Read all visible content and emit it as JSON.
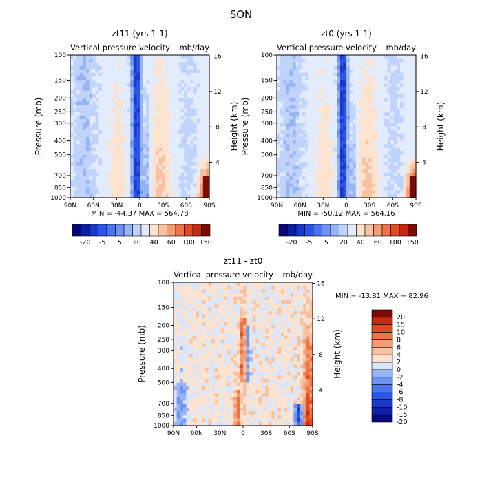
{
  "figure_title": "SON",
  "colors": {
    "scale_main": [
      "#08087a",
      "#0d1fa8",
      "#1a39cc",
      "#2b55e6",
      "#4a74ee",
      "#6f93f3",
      "#97b4f7",
      "#bfd3fb",
      "#e2ecfd",
      "#fbe3cf",
      "#f8c2a0",
      "#f49d73",
      "#ee7448",
      "#e44a22",
      "#c42a10",
      "#7a0b05"
    ],
    "scale_diff": [
      "#08087a",
      "#0d1fa8",
      "#1a39cc",
      "#2b55e6",
      "#4a74ee",
      "#6f93f3",
      "#97b4f7",
      "#d9e6fc",
      "#fbe3cf",
      "#f8c2a0",
      "#f49d73",
      "#ee7448",
      "#e44a22",
      "#c42a10",
      "#7a0b05"
    ]
  },
  "chart_data": [
    {
      "id": "left",
      "type": "heatmap",
      "title": "zt11 (yrs 1-1)",
      "subtitle_left": "Vertical pressure velocity",
      "subtitle_right": "mb/day",
      "ylabel": "Pressure (mb)",
      "ylabel_right": "Height (km)",
      "x_ticks": [
        "90N",
        "60N",
        "30N",
        "0",
        "30S",
        "60S",
        "90S"
      ],
      "y_ticks": [
        100,
        150,
        200,
        250,
        300,
        400,
        500,
        700,
        850,
        1000
      ],
      "y_log": true,
      "height_ticks": [
        4,
        8,
        12,
        16
      ],
      "stats": "MIN = -44.37   MAX = 564.78",
      "colorbar_labels": [
        "-20",
        "-5",
        "5",
        "20",
        "40",
        "60",
        "100",
        "150"
      ],
      "field": "total",
      "seed": 3
    },
    {
      "id": "right",
      "type": "heatmap",
      "title": "zt0 (yrs 1-1)",
      "subtitle_left": "Vertical pressure velocity",
      "subtitle_right": "mb/day",
      "ylabel": "Pressure (mb)",
      "ylabel_right": "Height (km)",
      "x_ticks": [
        "90N",
        "60N",
        "30N",
        "0",
        "30S",
        "60S",
        "90S"
      ],
      "y_ticks": [
        100,
        150,
        200,
        250,
        300,
        400,
        500,
        700,
        850,
        1000
      ],
      "y_log": true,
      "height_ticks": [
        4,
        8,
        12,
        16
      ],
      "stats": "MIN = -50.12   MAX = 564.16",
      "colorbar_labels": [
        "-20",
        "-5",
        "5",
        "20",
        "40",
        "60",
        "100",
        "150"
      ],
      "field": "total",
      "seed": 7
    },
    {
      "id": "diff",
      "type": "heatmap",
      "title": "zt11 - zt0",
      "subtitle_left": "Vertical pressure velocity",
      "subtitle_right": "mb/day",
      "ylabel": "Pressure (mb)",
      "ylabel_right": "Height (km)",
      "x_ticks": [
        "90N",
        "60N",
        "30N",
        "0",
        "30S",
        "60S",
        "90S"
      ],
      "y_ticks": [
        100,
        150,
        200,
        250,
        300,
        400,
        500,
        700,
        850,
        1000
      ],
      "y_log": true,
      "height_ticks": [
        4,
        8,
        12,
        16
      ],
      "stats": "MIN = -13.81   MAX =  82.96",
      "colorbar_labels": [
        "20",
        "15",
        "10",
        "8",
        "6",
        "4",
        "2",
        "0",
        "-2",
        "-4",
        "-6",
        "-8",
        "-10",
        "-15",
        "-20"
      ],
      "field": "difference",
      "seed": 11
    }
  ]
}
